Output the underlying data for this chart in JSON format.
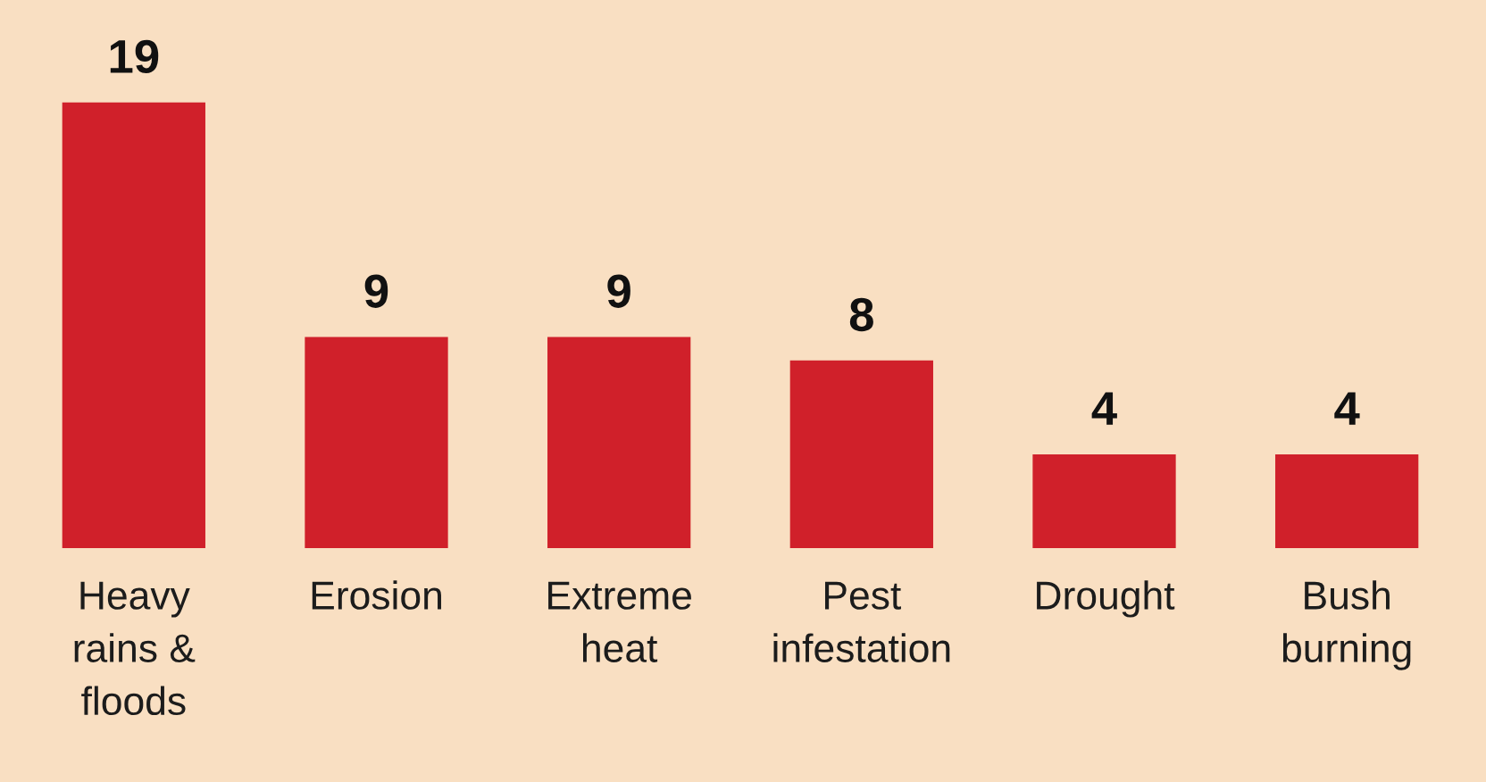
{
  "chart_data": {
    "type": "bar",
    "categories": [
      "Heavy\nrains &\nfloods",
      "Erosion",
      "Extreme\nheat",
      "Pest\ninfestation",
      "Drought",
      "Bush\nburning"
    ],
    "values": [
      19,
      9,
      9,
      8,
      4,
      4
    ],
    "color": "#d0202a",
    "data_labels": true,
    "grid": false,
    "legend": false
  }
}
